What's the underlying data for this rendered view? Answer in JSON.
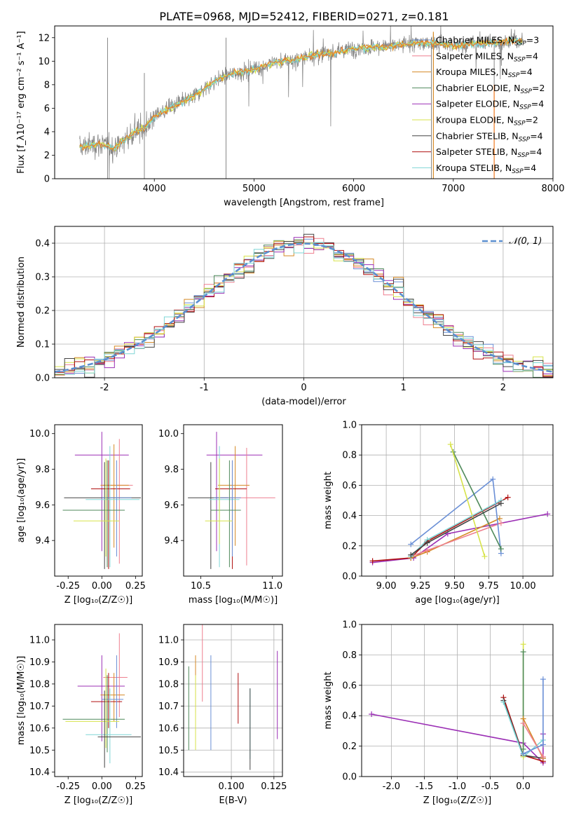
{
  "figure_title": "PLATE=0968, MJD=52412, FIBERID=0271, z=0.181",
  "colors": {
    "chabrier_miles": "#6a8fd6",
    "salpeter_miles": "#ee7f8f",
    "kroupa_miles": "#d58a26",
    "chabrier_elodie": "#4f8a5b",
    "salpeter_elodie": "#9b2fb5",
    "kroupa_elodie": "#d7e34a",
    "chabrier_stelib": "#444444",
    "salpeter_stelib": "#b01010",
    "kroupa_stelib": "#7fd6d6",
    "spectrum": "#888888",
    "normal": "#5b8fd0",
    "orange": "#f07a20"
  },
  "chart_data": [
    {
      "id": "spectrum",
      "type": "line",
      "xlabel": "wavelength [Angstrom, rest frame]",
      "ylabel": "Flux [f_λ10⁻¹⁷ erg cm⁻² s⁻¹ A⁻¹]",
      "xlim": [
        3000,
        8000
      ],
      "ylim": [
        0,
        13
      ],
      "xticks": [
        4000,
        5000,
        6000,
        7000,
        8000
      ],
      "yticks": [
        0,
        2,
        4,
        6,
        8,
        10,
        12
      ],
      "continuum": [
        [
          3250,
          2.7
        ],
        [
          3450,
          3.0
        ],
        [
          3600,
          2.6
        ],
        [
          3800,
          4.0
        ],
        [
          3900,
          4.3
        ],
        [
          4000,
          5.3
        ],
        [
          4200,
          6.2
        ],
        [
          4400,
          7.0
        ],
        [
          4600,
          8.3
        ],
        [
          4800,
          9.0
        ],
        [
          5000,
          9.3
        ],
        [
          5200,
          9.9
        ],
        [
          5400,
          10.1
        ],
        [
          5600,
          10.5
        ],
        [
          5800,
          10.7
        ],
        [
          6000,
          11.1
        ],
        [
          6200,
          11.2
        ],
        [
          6400,
          11.3
        ],
        [
          6600,
          11.5
        ],
        [
          6800,
          11.6
        ],
        [
          7000,
          11.3
        ],
        [
          7200,
          11.5
        ],
        [
          7400,
          11.6
        ],
        [
          7600,
          11.7
        ]
      ],
      "legend": [
        {
          "name": "Chabrier MILES, N",
          "sub": "SSP",
          "val": "=3",
          "color": "chabrier_miles"
        },
        {
          "name": "Salpeter MILES, N",
          "sub": "SSP",
          "val": "=4",
          "color": "salpeter_miles"
        },
        {
          "name": "Kroupa MILES, N",
          "sub": "SSP",
          "val": "=4",
          "color": "kroupa_miles"
        },
        {
          "name": "Chabrier ELODIE, N",
          "sub": "SSP",
          "val": "=2",
          "color": "chabrier_elodie"
        },
        {
          "name": "Salpeter ELODIE, N",
          "sub": "SSP",
          "val": "=4",
          "color": "salpeter_elodie"
        },
        {
          "name": "Kroupa ELODIE, N",
          "sub": "SSP",
          "val": "=2",
          "color": "kroupa_elodie"
        },
        {
          "name": "Chabrier STELIB, N",
          "sub": "SSP",
          "val": "=4",
          "color": "chabrier_stelib"
        },
        {
          "name": "Salpeter STELIB, N",
          "sub": "SSP",
          "val": "=4",
          "color": "salpeter_stelib"
        },
        {
          "name": "Kroupa STELIB, N",
          "sub": "SSP",
          "val": "=4",
          "color": "kroupa_stelib"
        }
      ]
    },
    {
      "id": "residuals",
      "type": "histogram",
      "xlabel": "(data-model)/error",
      "ylabel": "Normed distribution",
      "xlim": [
        -2.5,
        2.5
      ],
      "ylim": [
        0,
        0.45
      ],
      "xticks": [
        -2,
        -1,
        0,
        1,
        2
      ],
      "yticks": [
        0.0,
        0.1,
        0.2,
        0.3,
        0.4
      ],
      "grid": true,
      "legend_label": "𝒩(0, 1)"
    },
    {
      "id": "age_vs_Z",
      "type": "errorbar",
      "xlabel": "Z [log₁₀(Z/Z☉)]",
      "ylabel": "age  [log₁₀(age/yr)]",
      "xlim": [
        -0.35,
        0.3
      ],
      "ylim": [
        9.2,
        10.05
      ],
      "xticks": [
        -0.25,
        0.0,
        0.25
      ],
      "yticks": [
        9.4,
        9.6,
        9.8,
        10.0
      ],
      "points": [
        {
          "c": "salpeter_elodie",
          "x": 0.0,
          "y": 9.88,
          "xe": [
            0.2,
            0.2
          ],
          "ye": [
            0.54,
            0.13
          ]
        },
        {
          "c": "salpeter_miles",
          "x": 0.13,
          "y": 9.71,
          "xe": [
            0.12,
            0.1
          ],
          "ye": [
            0.44,
            0.26
          ]
        },
        {
          "c": "kroupa_miles",
          "x": 0.09,
          "y": 9.71,
          "xe": [
            0.1,
            0.11
          ],
          "ye": [
            0.35,
            0.23
          ]
        },
        {
          "c": "salpeter_stelib",
          "x": 0.05,
          "y": 9.69,
          "xe": [
            0.13,
            0.16
          ],
          "ye": [
            0.45,
            0.16
          ]
        },
        {
          "c": "chabrier_stelib",
          "x": 0.02,
          "y": 9.64,
          "xe": [
            0.3,
            0.27
          ],
          "ye": [
            0.4,
            0.2
          ]
        },
        {
          "c": "kroupa_stelib",
          "x": 0.06,
          "y": 9.63,
          "xe": [
            0.18,
            0.22
          ],
          "ye": [
            0.38,
            0.3
          ]
        },
        {
          "c": "chabrier_miles",
          "x": 0.11,
          "y": 9.64,
          "xe": [
            0.11,
            0.11
          ],
          "ye": [
            0.33,
            0.21
          ]
        },
        {
          "c": "chabrier_elodie",
          "x": 0.04,
          "y": 9.57,
          "xe": [
            0.33,
            0.13
          ],
          "ye": [
            0.32,
            0.28
          ]
        },
        {
          "c": "kroupa_elodie",
          "x": 0.03,
          "y": 9.51,
          "xe": [
            0.24,
            0.1
          ],
          "ye": [
            0.2,
            0.35
          ]
        }
      ]
    },
    {
      "id": "age_vs_mass",
      "type": "errorbar",
      "xlabel": "mass [log₁₀(M/M☉)]",
      "ylabel": "",
      "xlim": [
        10.38,
        11.07
      ],
      "ylim": [
        9.2,
        10.05
      ],
      "xticks": [
        10.5,
        11.0
      ],
      "yticks": [
        9.4,
        9.6,
        9.8,
        10.0
      ],
      "points": [
        {
          "c": "salpeter_elodie",
          "x": 10.61,
          "y": 9.88,
          "xe": [
            0.07,
            0.32
          ],
          "ye": [
            0.54,
            0.13
          ]
        },
        {
          "c": "salpeter_miles",
          "x": 10.82,
          "y": 9.64,
          "xe": [
            0.18,
            0.2
          ],
          "ye": [
            0.38,
            0.28
          ]
        },
        {
          "c": "kroupa_miles",
          "x": 10.74,
          "y": 9.71,
          "xe": [
            0.12,
            0.1
          ],
          "ye": [
            0.34,
            0.22
          ]
        },
        {
          "c": "salpeter_stelib",
          "x": 10.72,
          "y": 9.69,
          "xe": [
            0.12,
            0.1
          ],
          "ye": [
            0.45,
            0.16
          ]
        },
        {
          "c": "chabrier_stelib",
          "x": 10.57,
          "y": 9.64,
          "xe": [
            0.16,
            0.12
          ],
          "ye": [
            0.4,
            0.2
          ]
        },
        {
          "c": "kroupa_stelib",
          "x": 10.63,
          "y": 9.63,
          "xe": [
            0.07,
            0.14
          ],
          "ye": [
            0.38,
            0.3
          ]
        },
        {
          "c": "chabrier_miles",
          "x": 10.72,
          "y": 9.64,
          "xe": [
            0.13,
            0.06
          ],
          "ye": [
            0.33,
            0.21
          ]
        },
        {
          "c": "chabrier_elodie",
          "x": 10.7,
          "y": 9.57,
          "xe": [
            0.13,
            0.08
          ],
          "ye": [
            0.32,
            0.28
          ]
        },
        {
          "c": "kroupa_elodie",
          "x": 10.63,
          "y": 9.51,
          "xe": [
            0.1,
            0.09
          ],
          "ye": [
            0.13,
            0.35
          ]
        }
      ]
    },
    {
      "id": "weight_vs_age",
      "type": "line",
      "xlabel": "age  [log₁₀(age/yr)]",
      "ylabel": "mass weight",
      "xlim": [
        8.82,
        10.22
      ],
      "ylim": [
        0,
        1
      ],
      "xticks": [
        9.0,
        9.25,
        9.5,
        9.75,
        10.0
      ],
      "yticks": [
        0.0,
        0.2,
        0.4,
        0.6,
        0.8,
        1.0
      ],
      "grid": true,
      "series": [
        {
          "c": "salpeter_elodie",
          "x": [
            8.9,
            9.2,
            9.45,
            10.18
          ],
          "y": [
            0.09,
            0.12,
            0.28,
            0.41
          ]
        },
        {
          "c": "salpeter_stelib",
          "x": [
            8.9,
            9.18,
            9.3,
            9.89
          ],
          "y": [
            0.1,
            0.12,
            0.23,
            0.52
          ]
        },
        {
          "c": "kroupa_miles",
          "x": [
            9.18,
            9.3,
            9.83
          ],
          "y": [
            0.12,
            0.16,
            0.38
          ]
        },
        {
          "c": "salpeter_miles",
          "x": [
            9.18,
            9.3,
            9.84
          ],
          "y": [
            0.13,
            0.17,
            0.35
          ]
        },
        {
          "c": "chabrier_miles",
          "x": [
            9.18,
            9.78,
            9.84
          ],
          "y": [
            0.21,
            0.64,
            0.15
          ]
        },
        {
          "c": "chabrier_elodie",
          "x": [
            9.49,
            9.84
          ],
          "y": [
            0.82,
            0.18
          ]
        },
        {
          "c": "kroupa_elodie",
          "x": [
            9.47,
            9.72
          ],
          "y": [
            0.87,
            0.13
          ]
        },
        {
          "c": "kroupa_stelib",
          "x": [
            9.18,
            9.3,
            9.84
          ],
          "y": [
            0.13,
            0.24,
            0.5
          ]
        },
        {
          "c": "chabrier_stelib",
          "x": [
            9.18,
            9.3,
            9.84
          ],
          "y": [
            0.14,
            0.22,
            0.48
          ]
        }
      ]
    },
    {
      "id": "mass_vs_Z",
      "type": "errorbar",
      "xlabel": "Z [log₁₀(Z/Z☉)]",
      "ylabel": "mass [log₁₀(M/M☉)]",
      "xlim": [
        -0.35,
        0.3
      ],
      "ylim": [
        10.38,
        11.07
      ],
      "xticks": [
        -0.25,
        0.0,
        0.25
      ],
      "yticks": [
        10.4,
        10.5,
        10.6,
        10.7,
        10.8,
        10.9,
        11.0
      ],
      "points": [
        {
          "c": "salpeter_elodie",
          "x": 0.0,
          "y": 10.79,
          "xe": [
            0.18,
            0.17
          ],
          "ye": [
            0.25,
            0.14
          ]
        },
        {
          "c": "salpeter_miles",
          "x": 0.13,
          "y": 10.83,
          "xe": [
            0.12,
            0.06
          ],
          "ye": [
            0.18,
            0.2
          ]
        },
        {
          "c": "kroupa_miles",
          "x": 0.09,
          "y": 10.75,
          "xe": [
            0.1,
            0.08
          ],
          "ye": [
            0.12,
            0.1
          ]
        },
        {
          "c": "salpeter_stelib",
          "x": 0.05,
          "y": 10.72,
          "xe": [
            0.13,
            0.1
          ],
          "ye": [
            0.12,
            0.13
          ]
        },
        {
          "c": "chabrier_miles",
          "x": 0.11,
          "y": 10.73,
          "xe": [
            0.11,
            0.05
          ],
          "ye": [
            0.13,
            0.2
          ]
        },
        {
          "c": "chabrier_elodie",
          "x": 0.04,
          "y": 10.64,
          "xe": [
            0.33,
            0.13
          ],
          "ye": [
            0.15,
            0.2
          ]
        },
        {
          "c": "kroupa_elodie",
          "x": 0.03,
          "y": 10.63,
          "xe": [
            0.3,
            0.1
          ],
          "ye": [
            0.12,
            0.24
          ]
        },
        {
          "c": "kroupa_stelib",
          "x": 0.06,
          "y": 10.57,
          "xe": [
            0.18,
            0.16
          ],
          "ye": [
            0.13,
            0.21
          ]
        },
        {
          "c": "chabrier_stelib",
          "x": 0.02,
          "y": 10.56,
          "xe": [
            0.05,
            0.27
          ],
          "ye": [
            0.14,
            0.21
          ]
        }
      ]
    },
    {
      "id": "mass_vs_ebv",
      "type": "errorbar",
      "xlabel": "E(B-V)",
      "ylabel": "",
      "xlim": [
        0.072,
        0.13
      ],
      "ylim": [
        10.38,
        11.07
      ],
      "xticks": [
        0.1,
        0.125
      ],
      "xticklabels": [
        "0.100",
        "0.125"
      ],
      "yticks": [
        10.4,
        10.5,
        10.6,
        10.7,
        10.8,
        10.9,
        11.0
      ],
      "grid": true,
      "points": [
        {
          "c": "salpeter_elodie",
          "x": 0.127,
          "y": 10.75,
          "xe": [
            0,
            0
          ],
          "ye": [
            0.2,
            0.2
          ]
        },
        {
          "c": "salpeter_miles",
          "x": 0.083,
          "y": 10.93,
          "xe": [
            0,
            0
          ],
          "ye": [
            0.21,
            0.2
          ]
        },
        {
          "c": "kroupa_miles",
          "x": 0.079,
          "y": 10.84,
          "xe": [
            0,
            0
          ],
          "ye": [
            0.17,
            0.09
          ]
        },
        {
          "c": "salpeter_stelib",
          "x": 0.104,
          "y": 10.73,
          "xe": [
            0,
            0
          ],
          "ye": [
            0.11,
            0.12
          ]
        },
        {
          "c": "chabrier_miles",
          "x": 0.088,
          "y": 10.73,
          "xe": [
            0,
            0
          ],
          "ye": [
            0.23,
            0.2
          ]
        },
        {
          "c": "kroupa_elodie",
          "x": 0.079,
          "y": 10.65,
          "xe": [
            0,
            0
          ],
          "ye": [
            0.15,
            0.19
          ]
        },
        {
          "c": "kroupa_stelib",
          "x": 0.111,
          "y": 10.6,
          "xe": [
            0,
            0
          ],
          "ye": [
            0.14,
            0.18
          ]
        },
        {
          "c": "chabrier_stelib",
          "x": 0.111,
          "y": 10.55,
          "xe": [
            0,
            0
          ],
          "ye": [
            0.14,
            0.23
          ]
        },
        {
          "c": "chabrier_elodie",
          "x": 0.075,
          "y": 10.68,
          "xe": [
            0,
            0
          ],
          "ye": [
            0.18,
            0.2
          ]
        }
      ]
    },
    {
      "id": "weight_vs_Z",
      "type": "line",
      "xlabel": "Z [log₁₀(Z/Z☉)]",
      "ylabel": "mass weight",
      "xlim": [
        -2.45,
        0.45
      ],
      "ylim": [
        0,
        1
      ],
      "xticks": [
        -2.0,
        -1.5,
        -1.0,
        -0.5,
        0.0
      ],
      "yticks": [
        0.0,
        0.2,
        0.4,
        0.6,
        0.8,
        1.0
      ],
      "grid": true,
      "series": [
        {
          "c": "salpeter_elodie",
          "x": [
            -2.3,
            0.0,
            0.3,
            0.3
          ],
          "y": [
            0.41,
            0.22,
            0.09,
            0.28
          ]
        },
        {
          "c": "salpeter_stelib",
          "x": [
            -0.3,
            0.0,
            0.3
          ],
          "y": [
            0.52,
            0.14,
            0.1
          ]
        },
        {
          "c": "chabrier_stelib",
          "x": [
            -0.3,
            0.0,
            0.3
          ],
          "y": [
            0.5,
            0.14,
            0.12
          ]
        },
        {
          "c": "kroupa_stelib",
          "x": [
            -0.3,
            0.0,
            0.3
          ],
          "y": [
            0.49,
            0.13,
            0.24
          ]
        },
        {
          "c": "kroupa_elodie",
          "x": [
            0.0,
            0.0
          ],
          "y": [
            0.87,
            0.13
          ]
        },
        {
          "c": "chabrier_elodie",
          "x": [
            0.0,
            0.0
          ],
          "y": [
            0.82,
            0.18
          ]
        },
        {
          "c": "kroupa_miles",
          "x": [
            0.0,
            0.3
          ],
          "y": [
            0.38,
            0.12
          ]
        },
        {
          "c": "salpeter_miles",
          "x": [
            0.0,
            0.3
          ],
          "y": [
            0.35,
            0.13
          ]
        },
        {
          "c": "chabrier_miles",
          "x": [
            0.0,
            0.3,
            0.3
          ],
          "y": [
            0.15,
            0.21,
            0.64
          ]
        }
      ]
    }
  ]
}
